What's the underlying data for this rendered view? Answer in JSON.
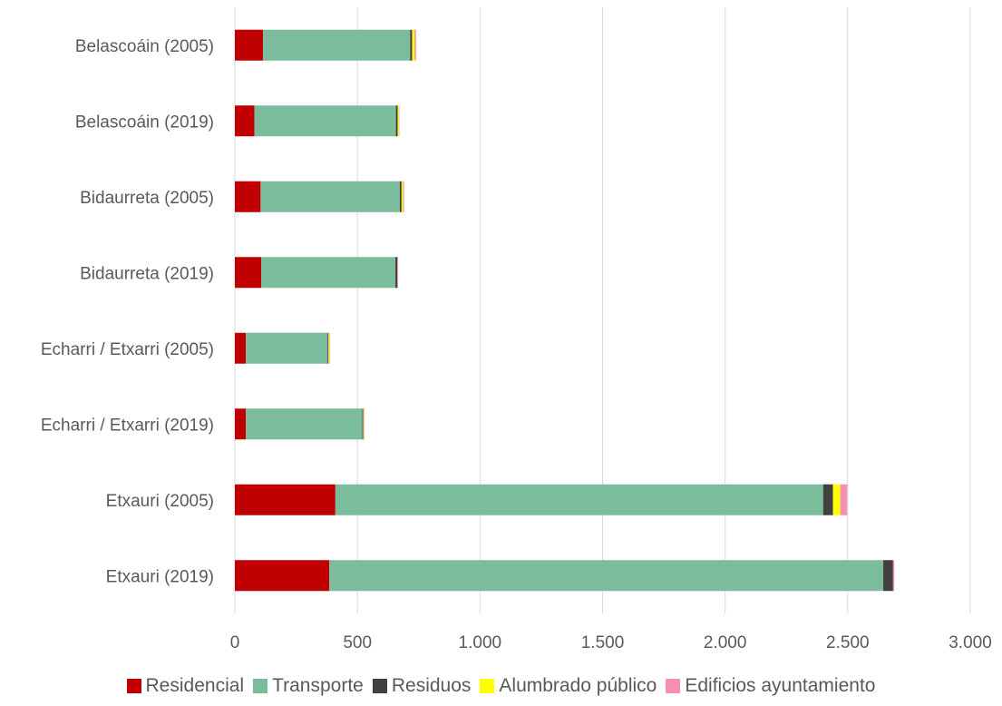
{
  "chart_data": {
    "type": "bar",
    "orientation": "horizontal",
    "stacked": true,
    "categories": [
      "Belascoáin (2005)",
      "Belascoáin (2019)",
      "Bidaurreta (2005)",
      "Bidaurreta  (2019)",
      "Echarri / Etxarri (2005)",
      "Echarri / Etxarri  (2019)",
      "Etxauri (2005)",
      "Etxauri (2019)"
    ],
    "series": [
      {
        "name": "Residencial",
        "color": "#C00000",
        "values": [
          115,
          80,
          105,
          108,
          45,
          45,
          410,
          385
        ]
      },
      {
        "name": "Transporte",
        "color": "#7ABC9B",
        "values": [
          600,
          577,
          568,
          547,
          333,
          475,
          1990,
          2260
        ]
      },
      {
        "name": "Residuos",
        "color": "#404040",
        "values": [
          8,
          7,
          7,
          8,
          4,
          4,
          40,
          40
        ]
      },
      {
        "name": "Alumbrado público",
        "color": "#FFFF00",
        "values": [
          10,
          5,
          6,
          0,
          4,
          2,
          30,
          0
        ]
      },
      {
        "name": "Edificios ayuntamiento",
        "color": "#F48FB1",
        "values": [
          6,
          2,
          4,
          3,
          2,
          2,
          28,
          5
        ]
      }
    ],
    "xlim": [
      0,
      3000
    ],
    "xticks": [
      0,
      500,
      1000,
      1500,
      2000,
      2500,
      3000
    ],
    "xtick_labels": [
      "0",
      "500",
      "1.000",
      "1.500",
      "2.000",
      "2.500",
      "3.000"
    ],
    "grid": "vertical",
    "legend_position": "bottom",
    "title": "",
    "xlabel": "",
    "ylabel": ""
  }
}
